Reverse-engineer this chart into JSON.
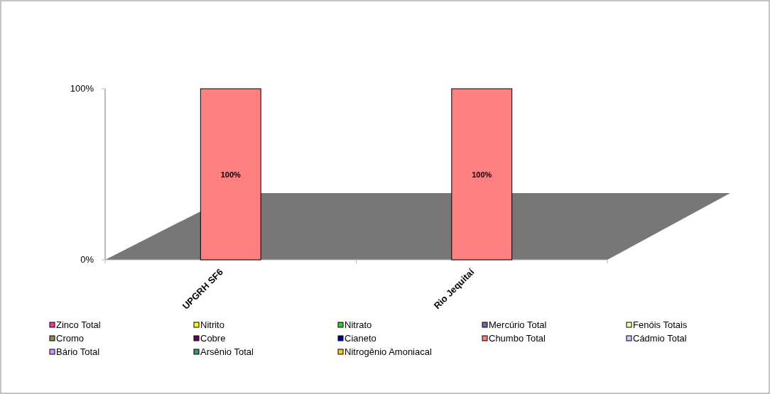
{
  "chart_data": {
    "type": "bar",
    "stacked": true,
    "categories": [
      "UPGRH SF6",
      "Rio Jequitaí"
    ],
    "ylim": [
      0,
      100
    ],
    "yticks": [
      {
        "value": 0,
        "label": "0%"
      },
      {
        "value": 100,
        "label": "100%"
      }
    ],
    "legend": "bottom",
    "series": [
      {
        "name": "Zinco Total",
        "color": "#ff3399",
        "values": [
          0,
          0
        ]
      },
      {
        "name": "Nitrito",
        "color": "#ffff00",
        "values": [
          0,
          0
        ]
      },
      {
        "name": "Nitrato",
        "color": "#33cc33",
        "values": [
          0,
          0
        ]
      },
      {
        "name": "Mercúrio Total",
        "color": "#8064a2",
        "values": [
          0,
          0
        ]
      },
      {
        "name": "Fenóis Totais",
        "color": "#ffff99",
        "values": [
          0,
          0
        ]
      },
      {
        "name": "Cromo",
        "color": "#948a54",
        "values": [
          0,
          0
        ]
      },
      {
        "name": "Cobre",
        "color": "#660066",
        "values": [
          0,
          0
        ]
      },
      {
        "name": "Cianeto",
        "color": "#000099",
        "values": [
          0,
          0
        ]
      },
      {
        "name": "Chumbo Total",
        "color": "#ff8080",
        "values": [
          100,
          100
        ],
        "value_labels": [
          "100%",
          "100%"
        ]
      },
      {
        "name": "Cádmio Total",
        "color": "#ccccff",
        "values": [
          0,
          0
        ]
      },
      {
        "name": "Bário Total",
        "color": "#cc99ff",
        "values": [
          0,
          0
        ]
      },
      {
        "name": "Arsênio Total",
        "color": "#339966",
        "values": [
          0,
          0
        ]
      },
      {
        "name": "Nitrogênio Amoniacal",
        "color": "#ffcc00",
        "values": [
          0,
          0
        ]
      }
    ]
  }
}
